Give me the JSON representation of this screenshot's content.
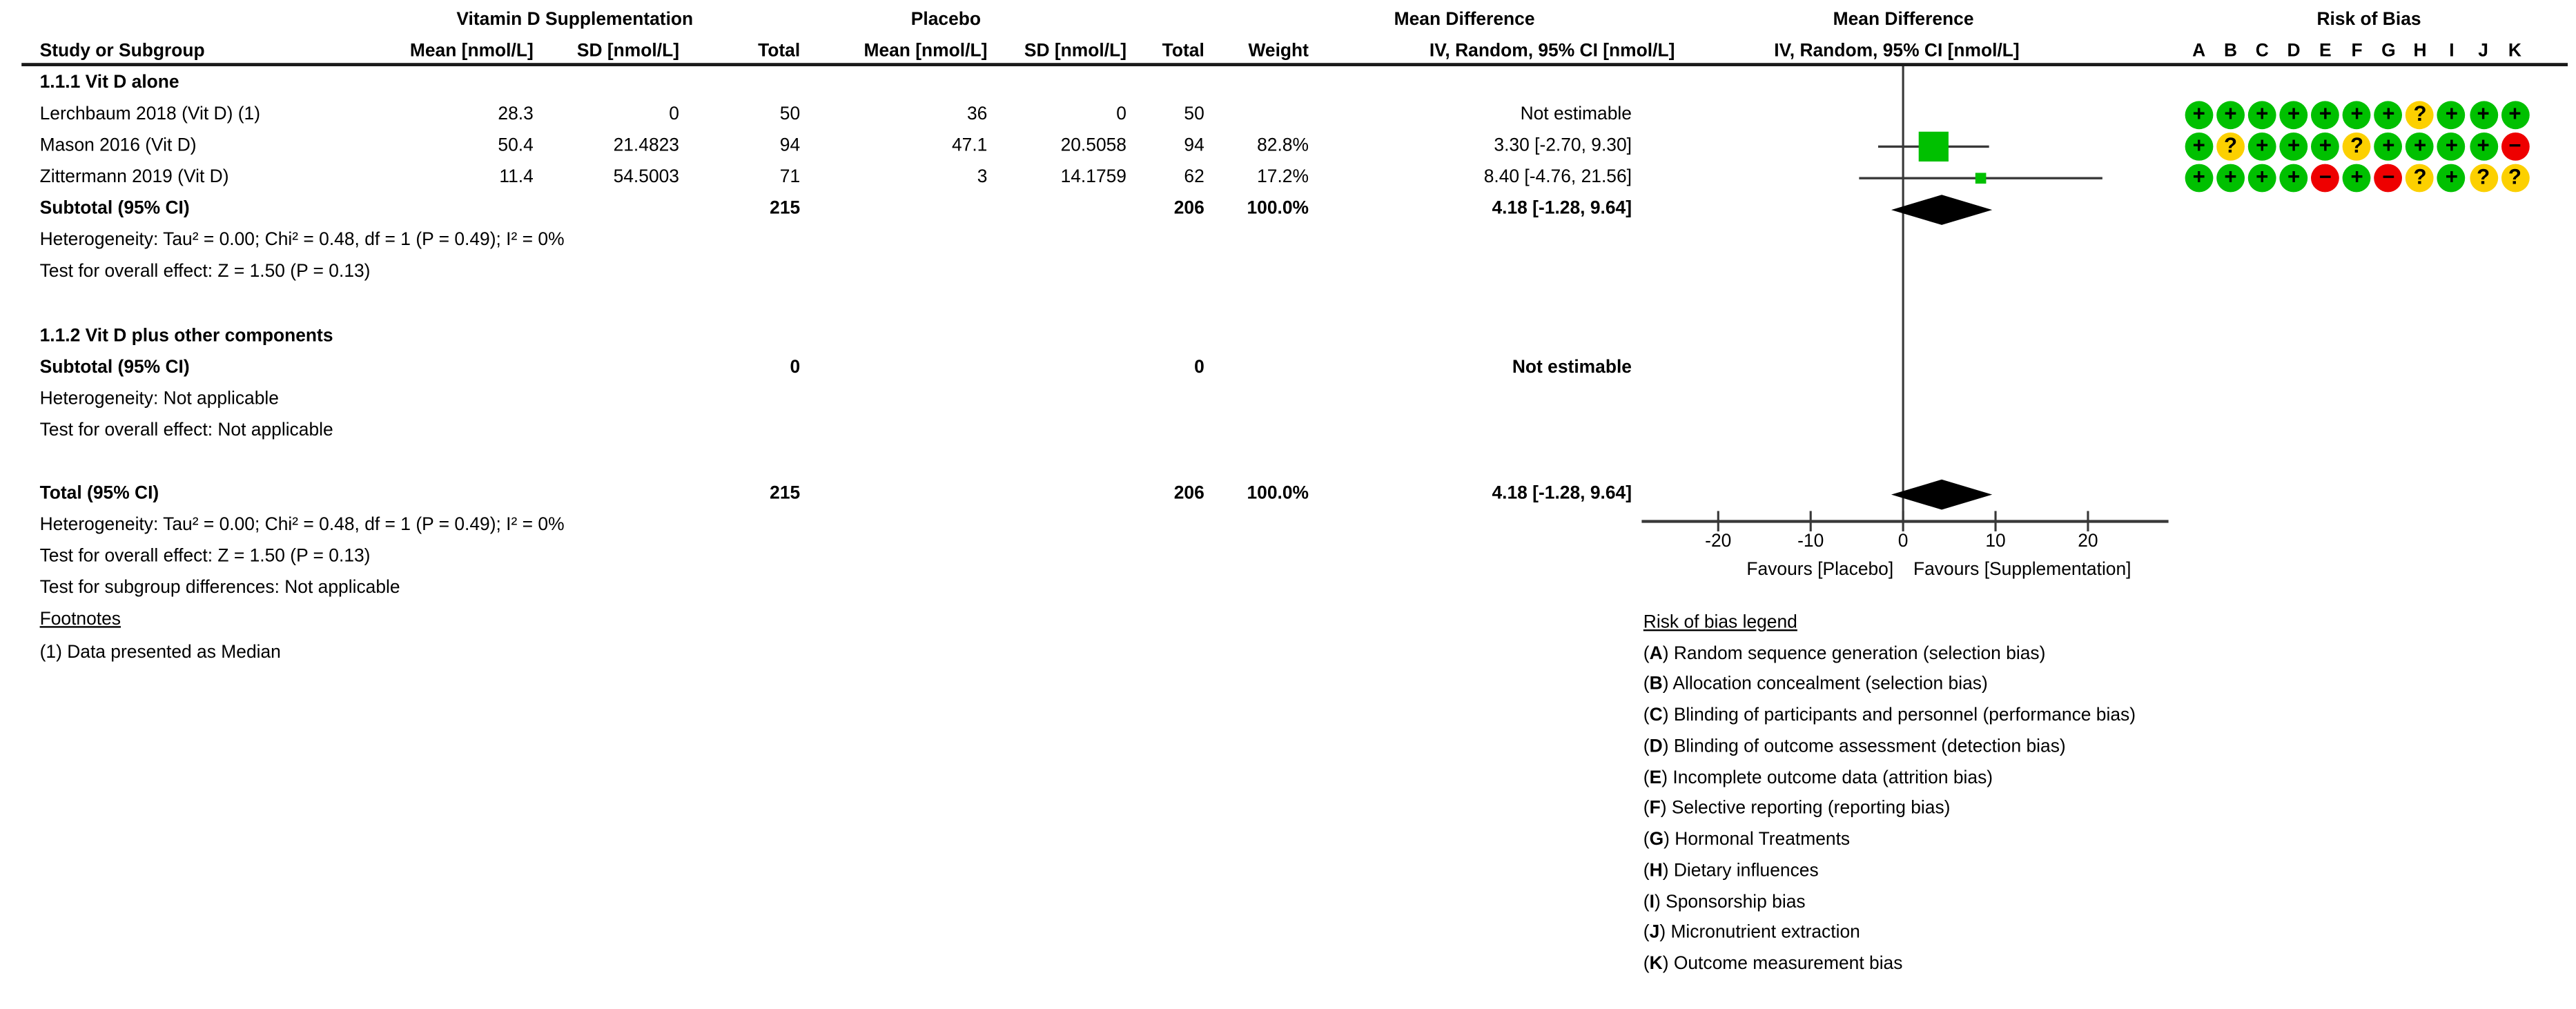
{
  "header": {
    "group1": "Vitamin D Supplementation",
    "group2": "Placebo",
    "md_text": {
      "title": "Mean Difference",
      "sub": "IV, Random, 95% CI [nmol/L]"
    },
    "md_plot": {
      "title": "Mean Difference",
      "sub": "IV, Random, 95% CI [nmol/L]"
    },
    "rob_title": "Risk of Bias",
    "study_col": "Study or Subgroup",
    "cols": {
      "m1": "Mean [nmol/L]",
      "s1": "SD [nmol/L]",
      "t1": "Total",
      "m2": "Mean [nmol/L]",
      "s2": "SD [nmol/L]",
      "t2": "Total",
      "w": "Weight",
      "ci": "IV, Random, 95% CI [nmol/L]"
    }
  },
  "table": {
    "rows": [
      {
        "type": "section",
        "label": "1.1.1 Vit D alone"
      },
      {
        "type": "study",
        "label": "Lerchbaum 2018 (Vit D) (1)",
        "m1": "28.3",
        "s1": "0",
        "t1": "50",
        "m2": "36",
        "s2": "0",
        "t2": "50",
        "w": "",
        "ci": "Not estimable"
      },
      {
        "type": "study",
        "label": "Mason 2016 (Vit D)",
        "m1": "50.4",
        "s1": "21.4823",
        "t1": "94",
        "m2": "47.1",
        "s2": "20.5058",
        "t2": "94",
        "w": "82.8%",
        "ci": "3.30 [-2.70, 9.30]"
      },
      {
        "type": "study",
        "label": "Zittermann 2019 (Vit D)",
        "m1": "11.4",
        "s1": "54.5003",
        "t1": "71",
        "m2": "3",
        "s2": "14.1759",
        "t2": "62",
        "w": "17.2%",
        "ci": "8.40 [-4.76, 21.56]"
      },
      {
        "type": "subtotal",
        "label": "Subtotal (95% CI)",
        "t1": "215",
        "t2": "206",
        "w": "100.0%",
        "ci": "4.18 [-1.28, 9.64]"
      },
      {
        "type": "text",
        "label": "Heterogeneity: Tau² = 0.00; Chi² = 0.48, df = 1 (P = 0.49); I² = 0%"
      },
      {
        "type": "text",
        "label": "Test for overall effect: Z = 1.50 (P = 0.13)"
      },
      {
        "type": "spacer"
      },
      {
        "type": "section",
        "label": "1.1.2 Vit D plus other components"
      },
      {
        "type": "subtotal",
        "label": "Subtotal (95% CI)",
        "t1": "0",
        "t2": "0",
        "ci": "Not estimable"
      },
      {
        "type": "text",
        "label": "Heterogeneity: Not applicable"
      },
      {
        "type": "text",
        "label": "Test for overall effect: Not applicable"
      },
      {
        "type": "spacer"
      },
      {
        "type": "total",
        "label": "Total (95% CI)",
        "t1": "215",
        "t2": "206",
        "w": "100.0%",
        "ci": "4.18 [-1.28, 9.64]"
      },
      {
        "type": "text",
        "label": "Heterogeneity: Tau² = 0.00; Chi² = 0.48, df = 1 (P = 0.49); I² = 0%"
      },
      {
        "type": "text",
        "label": "Test for overall effect: Z = 1.50 (P = 0.13)"
      },
      {
        "type": "text",
        "label": "Test for subgroup differences: Not applicable"
      },
      {
        "type": "underline",
        "label": "Footnotes"
      },
      {
        "type": "text",
        "label": "(1) Data presented as Median"
      }
    ]
  },
  "axis": {
    "favours_left": "Favours [Placebo]",
    "favours_right": "Favours [Supplementation]"
  },
  "risk_of_bias": {
    "letters": [
      "A",
      "B",
      "C",
      "D",
      "E",
      "F",
      "G",
      "H",
      "I",
      "J",
      "K"
    ],
    "rows": [
      {
        "study": "Lerchbaum 2018 (Vit D)",
        "ratings": [
          "+",
          "+",
          "+",
          "+",
          "+",
          "+",
          "+",
          "?",
          "+",
          "+",
          "+"
        ]
      },
      {
        "study": "Mason 2016 (Vit D)",
        "ratings": [
          "+",
          "?",
          "+",
          "+",
          "+",
          "?",
          "+",
          "+",
          "+",
          "+",
          "-"
        ]
      },
      {
        "study": "Zittermann 2019 (Vit D)",
        "ratings": [
          "+",
          "+",
          "+",
          "+",
          "-",
          "+",
          "-",
          "?",
          "+",
          "?",
          "?"
        ]
      }
    ],
    "colors": {
      "+": "#00c000",
      "?": "#fcd000",
      "-": "#ee0000"
    },
    "legend_title": "Risk of bias legend",
    "legend": [
      {
        "letter": "A",
        "text": "Random sequence generation (selection bias)"
      },
      {
        "letter": "B",
        "text": "Allocation concealment (selection bias)"
      },
      {
        "letter": "C",
        "text": "Blinding of participants and personnel (performance bias)"
      },
      {
        "letter": "D",
        "text": "Blinding of outcome assessment (detection bias)"
      },
      {
        "letter": "E",
        "text": "Incomplete outcome data (attrition bias)"
      },
      {
        "letter": "F",
        "text": "Selective reporting (reporting bias)"
      },
      {
        "letter": "G",
        "text": "Hormonal Treatments"
      },
      {
        "letter": "H",
        "text": "Dietary influences"
      },
      {
        "letter": "I",
        "text": "Sponsorship bias"
      },
      {
        "letter": "J",
        "text": "Micronutrient extraction"
      },
      {
        "letter": "K",
        "text": "Outcome measurement bias"
      }
    ]
  },
  "chart_data": {
    "type": "forest",
    "effect_label": "Mean Difference, IV, Random, 95% CI [nmol/L]",
    "x_ticks": [
      -20,
      -10,
      0,
      10,
      20
    ],
    "xlim": [
      -28,
      28.5
    ],
    "favours_left": "Favours [Placebo]",
    "favours_right": "Favours [Supplementation]",
    "studies": [
      {
        "name": "Lerchbaum 2018 (Vit D) (1)",
        "vd_mean": 28.3,
        "vd_sd": 0,
        "vd_total": 50,
        "pl_mean": 36,
        "pl_sd": 0,
        "pl_total": 50,
        "weight": null,
        "md": null,
        "lo": null,
        "hi": null,
        "note": "Not estimable"
      },
      {
        "name": "Mason 2016 (Vit D)",
        "vd_mean": 50.4,
        "vd_sd": 21.4823,
        "vd_total": 94,
        "pl_mean": 47.1,
        "pl_sd": 20.5058,
        "pl_total": 94,
        "weight": 82.8,
        "md": 3.3,
        "lo": -2.7,
        "hi": 9.3
      },
      {
        "name": "Zittermann 2019 (Vit D)",
        "vd_mean": 11.4,
        "vd_sd": 54.5003,
        "vd_total": 71,
        "pl_mean": 3,
        "pl_sd": 14.1759,
        "pl_total": 62,
        "weight": 17.2,
        "md": 8.4,
        "lo": -4.76,
        "hi": 21.56
      }
    ],
    "subtotal": {
      "label": "Subtotal (95% CI)",
      "total_vd": 215,
      "total_pl": 206,
      "weight": 100.0,
      "md": 4.18,
      "lo": -1.28,
      "hi": 9.64
    },
    "total": {
      "label": "Total (95% CI)",
      "total_vd": 215,
      "total_pl": 206,
      "weight": 100.0,
      "md": 4.18,
      "lo": -1.28,
      "hi": 9.64
    },
    "heterogeneity": "Tau² = 0.00; Chi² = 0.48, df = 1 (P = 0.49); I² = 0%",
    "overall_effect": "Z = 1.50 (P = 0.13)",
    "colors": {
      "square": "#00c000",
      "diamond": "#000000",
      "line": "#383838"
    }
  }
}
